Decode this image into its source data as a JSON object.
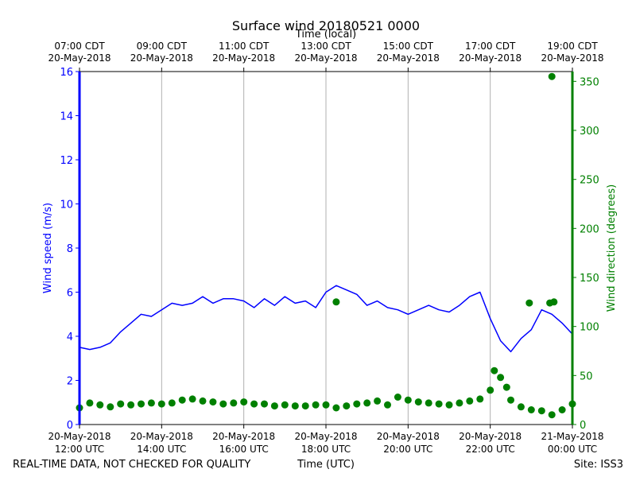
{
  "chart_data": {
    "type": "line",
    "title": "Surface wind 20180521 0000",
    "xlabel": "Time (UTC)",
    "xlabel_top": "Time (local)",
    "ylabel": "Wind speed (m/s)",
    "ylabel_right": "Wind direction (degrees)",
    "footer_left": "REAL-TIME DATA, NOT CHECKED FOR QUALITY",
    "footer_right": "Site: ISS3",
    "x_unit": "hours since 20-May-2018 12:00 UTC",
    "xlim": [
      0,
      12
    ],
    "ylim": [
      0,
      16
    ],
    "ylim_right": [
      0,
      360
    ],
    "grid": "vertical",
    "colors": {
      "speed": "#0000ff",
      "direction": "#008000",
      "grid": "#b0b0b0",
      "axis": "#000000"
    },
    "y_ticks": [
      "0",
      "2",
      "4",
      "6",
      "8",
      "10",
      "12",
      "14",
      "16"
    ],
    "y_right_ticks": [
      "0",
      "50",
      "100",
      "150",
      "200",
      "250",
      "300",
      "350"
    ],
    "x_ticks_bottom": [
      {
        "x": 0,
        "line1": "20-May-2018",
        "line2": "12:00 UTC"
      },
      {
        "x": 2,
        "line1": "20-May-2018",
        "line2": "14:00 UTC"
      },
      {
        "x": 4,
        "line1": "20-May-2018",
        "line2": "16:00 UTC"
      },
      {
        "x": 6,
        "line1": "20-May-2018",
        "line2": "18:00 UTC"
      },
      {
        "x": 8,
        "line1": "20-May-2018",
        "line2": "20:00 UTC"
      },
      {
        "x": 10,
        "line1": "20-May-2018",
        "line2": "22:00 UTC"
      },
      {
        "x": 12,
        "line1": "21-May-2018",
        "line2": "00:00 UTC"
      }
    ],
    "x_ticks_top": [
      {
        "x": 0,
        "line1": "07:00 CDT",
        "line2": "20-May-2018"
      },
      {
        "x": 2,
        "line1": "09:00 CDT",
        "line2": "20-May-2018"
      },
      {
        "x": 4,
        "line1": "11:00 CDT",
        "line2": "20-May-2018"
      },
      {
        "x": 6,
        "line1": "13:00 CDT",
        "line2": "20-May-2018"
      },
      {
        "x": 8,
        "line1": "15:00 CDT",
        "line2": "20-May-2018"
      },
      {
        "x": 10,
        "line1": "17:00 CDT",
        "line2": "20-May-2018"
      },
      {
        "x": 12,
        "line1": "19:00 CDT",
        "line2": "20-May-2018"
      }
    ],
    "series": [
      {
        "name": "Wind speed",
        "axis": "left",
        "style": "line",
        "points": [
          [
            0,
            3.5
          ],
          [
            0.25,
            3.4
          ],
          [
            0.5,
            3.5
          ],
          [
            0.75,
            3.7
          ],
          [
            1.0,
            4.2
          ],
          [
            1.25,
            4.6
          ],
          [
            1.5,
            5.0
          ],
          [
            1.75,
            4.9
          ],
          [
            2.0,
            5.2
          ],
          [
            2.25,
            5.5
          ],
          [
            2.5,
            5.4
          ],
          [
            2.75,
            5.5
          ],
          [
            3.0,
            5.8
          ],
          [
            3.25,
            5.5
          ],
          [
            3.5,
            5.7
          ],
          [
            3.75,
            5.7
          ],
          [
            4.0,
            5.6
          ],
          [
            4.25,
            5.3
          ],
          [
            4.5,
            5.7
          ],
          [
            4.75,
            5.4
          ],
          [
            5.0,
            5.8
          ],
          [
            5.25,
            5.5
          ],
          [
            5.5,
            5.6
          ],
          [
            5.75,
            5.3
          ],
          [
            6.0,
            6.0
          ],
          [
            6.25,
            6.3
          ],
          [
            6.5,
            6.1
          ],
          [
            6.75,
            5.9
          ],
          [
            7.0,
            5.4
          ],
          [
            7.25,
            5.6
          ],
          [
            7.5,
            5.3
          ],
          [
            7.75,
            5.2
          ],
          [
            8.0,
            5.0
          ],
          [
            8.25,
            5.2
          ],
          [
            8.5,
            5.4
          ],
          [
            8.75,
            5.2
          ],
          [
            9.0,
            5.1
          ],
          [
            9.25,
            5.4
          ],
          [
            9.5,
            5.8
          ],
          [
            9.75,
            6.0
          ],
          [
            10.0,
            4.8
          ],
          [
            10.25,
            3.8
          ],
          [
            10.5,
            3.3
          ],
          [
            10.75,
            3.9
          ],
          [
            11.0,
            4.3
          ],
          [
            11.25,
            5.2
          ],
          [
            11.5,
            5.0
          ],
          [
            11.75,
            4.6
          ],
          [
            12.0,
            4.1
          ]
        ]
      },
      {
        "name": "Wind direction",
        "axis": "right",
        "style": "markers",
        "points": [
          [
            0,
            17
          ],
          [
            0.25,
            22
          ],
          [
            0.5,
            20
          ],
          [
            0.75,
            18
          ],
          [
            1.0,
            21
          ],
          [
            1.25,
            20
          ],
          [
            1.5,
            21
          ],
          [
            1.75,
            22
          ],
          [
            2.0,
            21
          ],
          [
            2.25,
            22
          ],
          [
            2.5,
            25
          ],
          [
            2.75,
            26
          ],
          [
            3.0,
            24
          ],
          [
            3.25,
            23
          ],
          [
            3.5,
            21
          ],
          [
            3.75,
            22
          ],
          [
            4.0,
            23
          ],
          [
            4.25,
            21
          ],
          [
            4.5,
            21
          ],
          [
            4.75,
            19
          ],
          [
            5.0,
            20
          ],
          [
            5.25,
            19
          ],
          [
            5.5,
            19
          ],
          [
            5.75,
            20
          ],
          [
            6.0,
            20
          ],
          [
            6.25,
            17
          ],
          [
            6.5,
            19
          ],
          [
            6.75,
            21
          ],
          [
            7.0,
            22
          ],
          [
            7.25,
            24
          ],
          [
            7.5,
            20
          ],
          [
            7.75,
            28
          ],
          [
            8.0,
            25
          ],
          [
            8.25,
            23
          ],
          [
            8.5,
            22
          ],
          [
            8.75,
            21
          ],
          [
            9.0,
            20
          ],
          [
            9.25,
            22
          ],
          [
            9.5,
            24
          ],
          [
            9.75,
            26
          ],
          [
            10.0,
            35
          ],
          [
            10.1,
            55
          ],
          [
            10.25,
            48
          ],
          [
            10.4,
            38
          ],
          [
            10.5,
            25
          ],
          [
            10.75,
            18
          ],
          [
            11.0,
            15
          ],
          [
            11.25,
            14
          ],
          [
            11.5,
            10
          ],
          [
            11.75,
            15
          ],
          [
            12.0,
            21
          ],
          [
            6.25,
            125
          ],
          [
            10.95,
            124
          ],
          [
            11.45,
            124
          ],
          [
            11.55,
            125
          ],
          [
            11.5,
            355
          ]
        ]
      }
    ]
  }
}
